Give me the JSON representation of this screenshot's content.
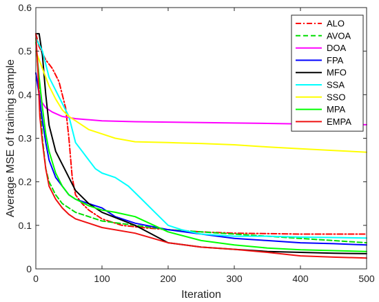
{
  "chart_data": {
    "type": "line",
    "title": "",
    "xlabel": "Iteration",
    "ylabel": "Average MSE of training sample",
    "xlim": [
      0,
      500
    ],
    "ylim": [
      0,
      0.6
    ],
    "xticks": [
      0,
      100,
      200,
      300,
      400,
      500
    ],
    "yticks": [
      0,
      0.1,
      0.2,
      0.3,
      0.4,
      0.5,
      0.6
    ],
    "xtick_labels": [
      "0",
      "100",
      "200",
      "300",
      "400",
      "500"
    ],
    "ytick_labels": [
      "0",
      "0.1",
      "0.2",
      "0.3",
      "0.4",
      "0.5",
      "0.6"
    ],
    "grid": false,
    "legend_position": "top-right",
    "series": [
      {
        "name": "ALO",
        "color": "#ff0000",
        "dash": "dashdot",
        "x": [
          0,
          5,
          15,
          25,
          35,
          45,
          50,
          55,
          60,
          70,
          80,
          100,
          130,
          160,
          200,
          250,
          300,
          350,
          400,
          450,
          500
        ],
        "y": [
          0.54,
          0.51,
          0.48,
          0.46,
          0.43,
          0.37,
          0.3,
          0.21,
          0.17,
          0.15,
          0.135,
          0.115,
          0.1,
          0.095,
          0.09,
          0.085,
          0.082,
          0.081,
          0.08,
          0.08,
          0.08
        ]
      },
      {
        "name": "AVOA",
        "color": "#00dd00",
        "dash": "dash",
        "x": [
          0,
          5,
          10,
          15,
          20,
          30,
          40,
          60,
          80,
          100,
          150,
          200,
          250,
          300,
          350,
          400,
          450,
          500
        ],
        "y": [
          0.53,
          0.42,
          0.3,
          0.23,
          0.2,
          0.17,
          0.15,
          0.13,
          0.12,
          0.11,
          0.1,
          0.09,
          0.085,
          0.08,
          0.075,
          0.07,
          0.065,
          0.06
        ]
      },
      {
        "name": "DOA",
        "color": "#ff00ff",
        "dash": "solid",
        "x": [
          0,
          3,
          8,
          15,
          25,
          40,
          60,
          100,
          150,
          200,
          250,
          300,
          350,
          400,
          450,
          500
        ],
        "y": [
          0.45,
          0.42,
          0.385,
          0.37,
          0.36,
          0.35,
          0.345,
          0.34,
          0.338,
          0.337,
          0.336,
          0.335,
          0.334,
          0.333,
          0.332,
          0.331
        ]
      },
      {
        "name": "FPA",
        "color": "#0000ff",
        "dash": "solid",
        "x": [
          0,
          5,
          10,
          15,
          20,
          30,
          40,
          50,
          60,
          80,
          100,
          120,
          150,
          200,
          250,
          300,
          350,
          400,
          450,
          500
        ],
        "y": [
          0.45,
          0.4,
          0.34,
          0.29,
          0.25,
          0.21,
          0.19,
          0.17,
          0.16,
          0.15,
          0.14,
          0.12,
          0.105,
          0.09,
          0.08,
          0.07,
          0.065,
          0.06,
          0.058,
          0.055
        ]
      },
      {
        "name": "MFO",
        "color": "#000000",
        "dash": "solid",
        "x": [
          0,
          5,
          10,
          15,
          20,
          30,
          40,
          50,
          60,
          80,
          100,
          150,
          200,
          250,
          300,
          350,
          400,
          450,
          500
        ],
        "y": [
          0.54,
          0.54,
          0.49,
          0.4,
          0.33,
          0.27,
          0.24,
          0.21,
          0.18,
          0.15,
          0.13,
          0.1,
          0.06,
          0.05,
          0.045,
          0.04,
          0.038,
          0.036,
          0.035
        ]
      },
      {
        "name": "SSA",
        "color": "#00ffff",
        "dash": "solid",
        "x": [
          0,
          10,
          20,
          30,
          40,
          50,
          60,
          70,
          80,
          90,
          100,
          120,
          140,
          160,
          180,
          200,
          220,
          250,
          300,
          350,
          400,
          450,
          500
        ],
        "y": [
          0.53,
          0.5,
          0.44,
          0.41,
          0.38,
          0.35,
          0.29,
          0.27,
          0.25,
          0.23,
          0.22,
          0.21,
          0.19,
          0.16,
          0.13,
          0.1,
          0.09,
          0.08,
          0.075,
          0.075,
          0.073,
          0.072,
          0.071
        ]
      },
      {
        "name": "SSO",
        "color": "#ffff00",
        "dash": "solid",
        "x": [
          0,
          5,
          10,
          15,
          20,
          30,
          40,
          50,
          60,
          80,
          100,
          120,
          150,
          200,
          250,
          300,
          350,
          400,
          450,
          500
        ],
        "y": [
          0.5,
          0.48,
          0.46,
          0.44,
          0.42,
          0.39,
          0.365,
          0.35,
          0.34,
          0.32,
          0.31,
          0.3,
          0.292,
          0.29,
          0.288,
          0.285,
          0.28,
          0.276,
          0.272,
          0.268
        ]
      },
      {
        "name": "MPA",
        "color": "#00ff00",
        "dash": "solid",
        "x": [
          0,
          5,
          10,
          15,
          20,
          30,
          40,
          50,
          60,
          80,
          100,
          120,
          150,
          200,
          250,
          300,
          350,
          400,
          450,
          500
        ],
        "y": [
          0.52,
          0.44,
          0.37,
          0.31,
          0.27,
          0.22,
          0.19,
          0.17,
          0.16,
          0.145,
          0.135,
          0.13,
          0.12,
          0.085,
          0.065,
          0.055,
          0.048,
          0.044,
          0.042,
          0.04
        ]
      },
      {
        "name": "EMPA",
        "color": "#ee1111",
        "dash": "solid",
        "x": [
          0,
          3,
          6,
          10,
          15,
          20,
          30,
          40,
          50,
          60,
          80,
          100,
          150,
          200,
          250,
          300,
          350,
          400,
          450,
          500
        ],
        "y": [
          0.54,
          0.46,
          0.35,
          0.29,
          0.23,
          0.19,
          0.16,
          0.14,
          0.125,
          0.115,
          0.105,
          0.095,
          0.082,
          0.06,
          0.05,
          0.045,
          0.038,
          0.03,
          0.027,
          0.025
        ]
      }
    ]
  }
}
